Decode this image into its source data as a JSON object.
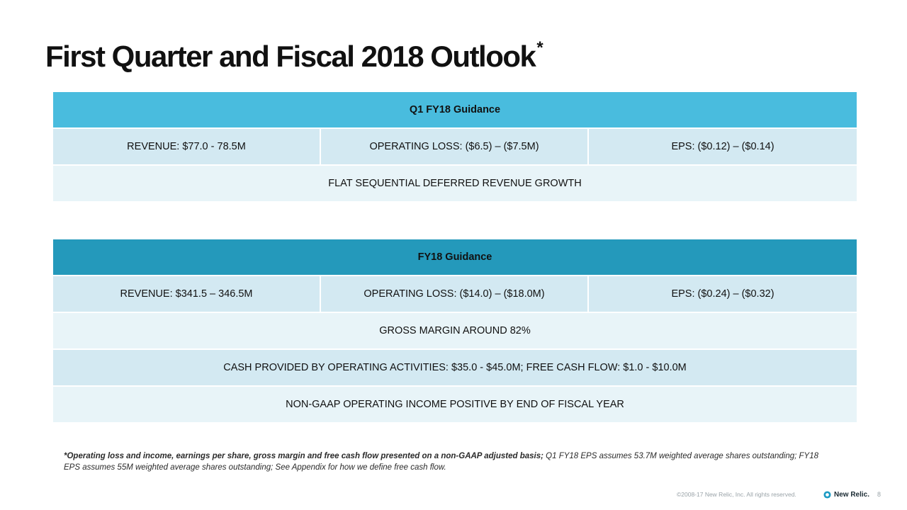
{
  "title": "First Quarter and Fiscal 2018 Outlook",
  "title_marker": "*",
  "q1": {
    "header": "Q1 FY18 Guidance",
    "revenue": "REVENUE: $77.0 - 78.5M",
    "operating_loss": "OPERATING LOSS: ($6.5) – ($7.5M)",
    "eps": "EPS: ($0.12) – ($0.14)",
    "deferred": "FLAT SEQUENTIAL DEFERRED REVENUE GROWTH"
  },
  "fy": {
    "header": "FY18 Guidance",
    "revenue": "REVENUE: $341.5 – 346.5M",
    "operating_loss": "OPERATING LOSS: ($14.0) – ($18.0M)",
    "eps": "EPS: ($0.24) – ($0.32)",
    "gross_margin": "GROSS MARGIN AROUND 82%",
    "cash": "CASH PROVIDED BY OPERATING ACTIVITIES: $35.0 - $45.0M; FREE CASH FLOW: $1.0 - $10.0M",
    "non_gaap": "NON-GAAP OPERATING INCOME POSITIVE BY END OF FISCAL YEAR"
  },
  "footnote": {
    "bold": "*Operating loss and income, earnings per share, gross margin and free cash flow presented on a non-GAAP adjusted basis;",
    "rest": " Q1 FY18 EPS assumes 53.7M weighted average shares outstanding; FY18 EPS assumes 55M weighted average shares outstanding; See Appendix for how we define free cash flow."
  },
  "footer": {
    "copyright": "©2008-17 New Relic, Inc. All rights reserved.",
    "logo_text": "New Relic.",
    "page_number": "8"
  },
  "colors": {
    "q1_header": "#49bcde",
    "fy_header": "#2499bb",
    "row_dark": "#d3e9f2",
    "row_light": "#e8f4f8"
  }
}
